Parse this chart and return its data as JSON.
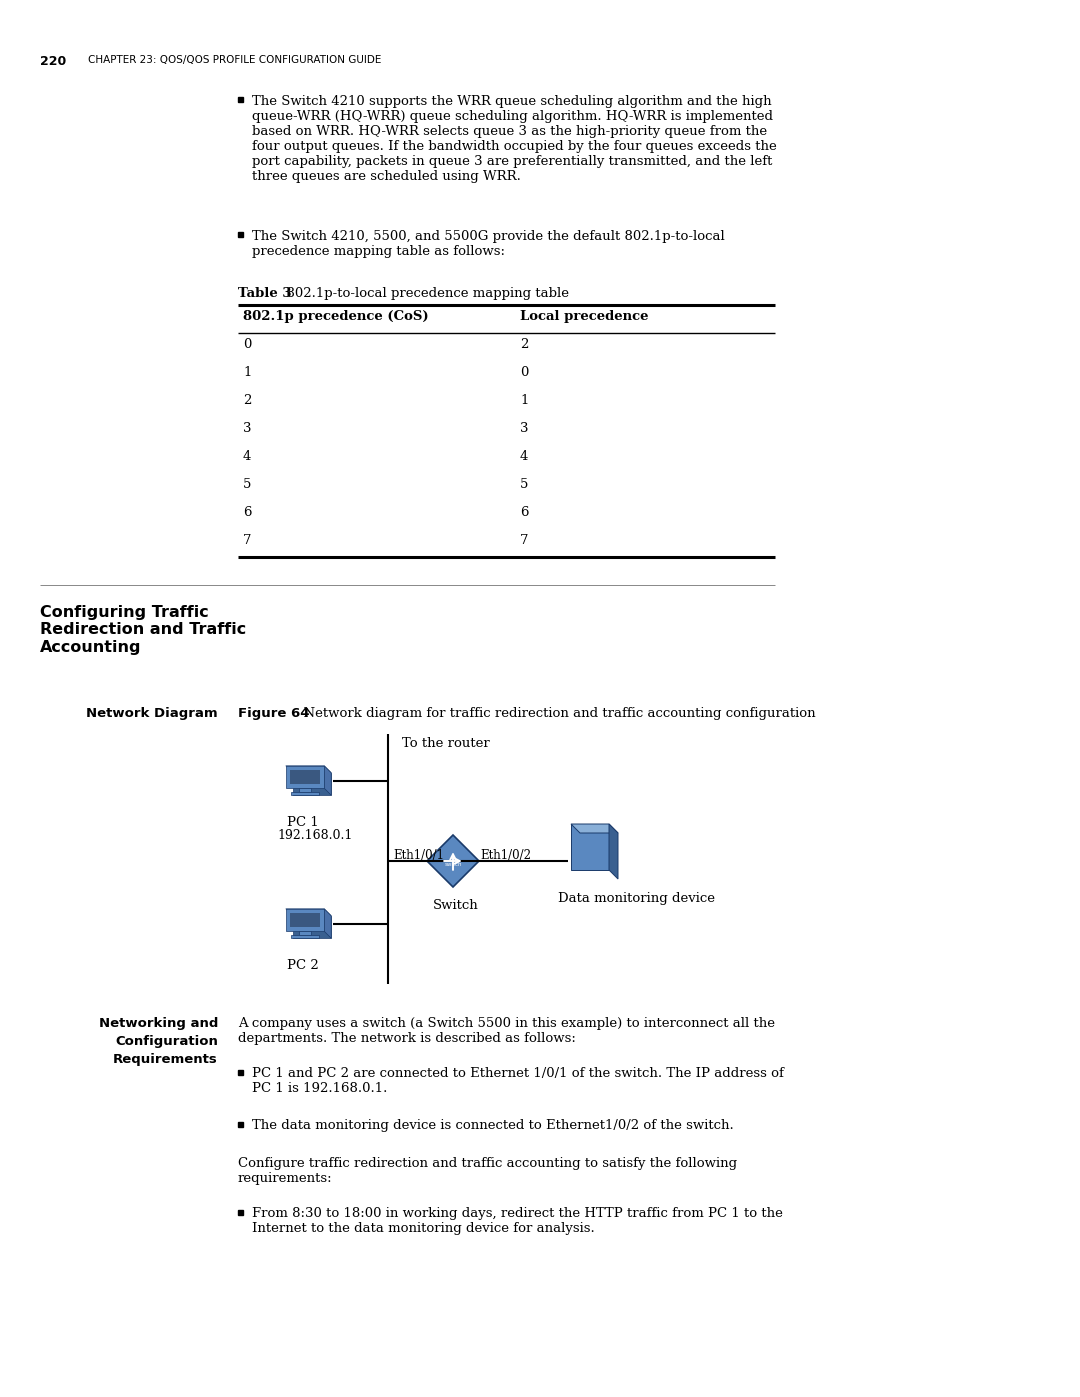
{
  "page_number": "220",
  "header_chapter": "Chapter 23: QoS/QoS Profile Configuration Guide",
  "bullet1_text": "The Switch 4210 supports the WRR queue scheduling algorithm and the high\nqueue-WRR (HQ-WRR) queue scheduling algorithm. HQ-WRR is implemented\nbased on WRR. HQ-WRR selects queue 3 as the high-priority queue from the\nfour output queues. If the bandwidth occupied by the four queues exceeds the\nport capability, packets in queue 3 are preferentially transmitted, and the left\nthree queues are scheduled using WRR.",
  "bullet2_text": "The Switch 4210, 5500, and 5500G provide the default 802.1p-to-local\nprecedence mapping table as follows:",
  "table_caption_bold": "Table 3",
  "table_caption_normal": "  802.1p-to-local precedence mapping table",
  "table_header_col1": "802.1p precedence (CoS)",
  "table_header_col2": "Local precedence",
  "table_rows": [
    [
      "0",
      "2"
    ],
    [
      "1",
      "0"
    ],
    [
      "2",
      "1"
    ],
    [
      "3",
      "3"
    ],
    [
      "4",
      "4"
    ],
    [
      "5",
      "5"
    ],
    [
      "6",
      "6"
    ],
    [
      "7",
      "7"
    ]
  ],
  "section_title": "Configuring Traffic\nRedirection and Traffic\nAccounting",
  "network_diagram_label": "Network Diagram",
  "figure_label_bold": "Figure 64",
  "figure_caption": "  Network diagram for traffic redirection and traffic accounting configuration",
  "to_router_label": "To the router",
  "pc1_label": "PC 1",
  "pc1_ip": "192.168.0.1",
  "pc2_label": "PC 2",
  "eth1_label": "Eth1/0/1",
  "eth2_label": "Eth1/0/2",
  "switch_label": "Switch",
  "data_monitor_label": "Data monitoring device",
  "net_req_title_line1": "Networking and",
  "net_req_title_line2": "Configuration",
  "net_req_title_line3": "Requirements",
  "net_req_para": "A company uses a switch (a Switch 5500 in this example) to interconnect all the\ndepartments. The network is described as follows:",
  "net_req_bullet1": "PC 1 and PC 2 are connected to Ethernet 1/0/1 of the switch. The IP address of\nPC 1 is 192.168.0.1.",
  "net_req_bullet2": "The data monitoring device is connected to Ethernet1/0/2 of the switch.",
  "net_req_para2": "Configure traffic redirection and traffic accounting to satisfy the following\nrequirements:",
  "net_req_bullet3": "From 8:30 to 18:00 in working days, redirect the HTTP traffic from PC 1 to the\nInternet to the data monitoring device for analysis.",
  "bg_color": "#ffffff",
  "text_color": "#000000"
}
